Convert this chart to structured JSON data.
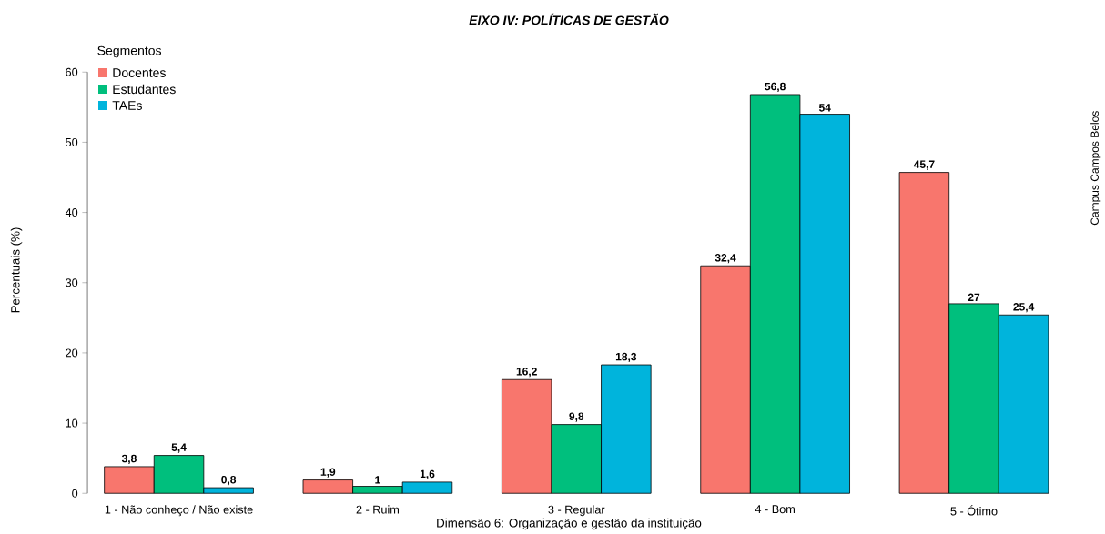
{
  "chart_data": {
    "type": "bar",
    "title": "EIXO IV: POLÍTICAS DE GESTÃO",
    "xlabel": "Dimensão 6: Organização e gestão da instituição",
    "ylabel": "Percentuais (%)",
    "legend_title": "Segmentos",
    "legend": "top left",
    "categories": [
      "1 - Não conheço / Não existe",
      "2 - Ruim",
      "3 - Regular",
      "4 - Bom",
      "5 - Ótimo"
    ],
    "series": [
      {
        "name": "Docentes",
        "color": "#f8766d",
        "values": [
          3.8,
          1.9,
          16.2,
          32.4,
          45.7
        ],
        "value_labels": [
          "3,8",
          "1,9",
          "16,2",
          "32,4",
          "45,7"
        ]
      },
      {
        "name": "Estudantes",
        "color": "#00bf7d",
        "values": [
          5.4,
          1,
          9.8,
          56.8,
          27
        ],
        "value_labels": [
          "5,4",
          "1",
          "9,8",
          "56,8",
          "27"
        ]
      },
      {
        "name": "TAEs",
        "color": "#00b4dc",
        "values": [
          0.8,
          1.6,
          18.3,
          54,
          25.4
        ],
        "value_labels": [
          "0,8",
          "1,6",
          "18,3",
          "54",
          "25,4"
        ]
      }
    ],
    "ylim": [
      0,
      60
    ],
    "yticks": [
      0,
      10,
      20,
      30,
      40,
      50,
      60
    ],
    "grid": false,
    "annotations": [
      "Campus Campos Belos"
    ]
  }
}
